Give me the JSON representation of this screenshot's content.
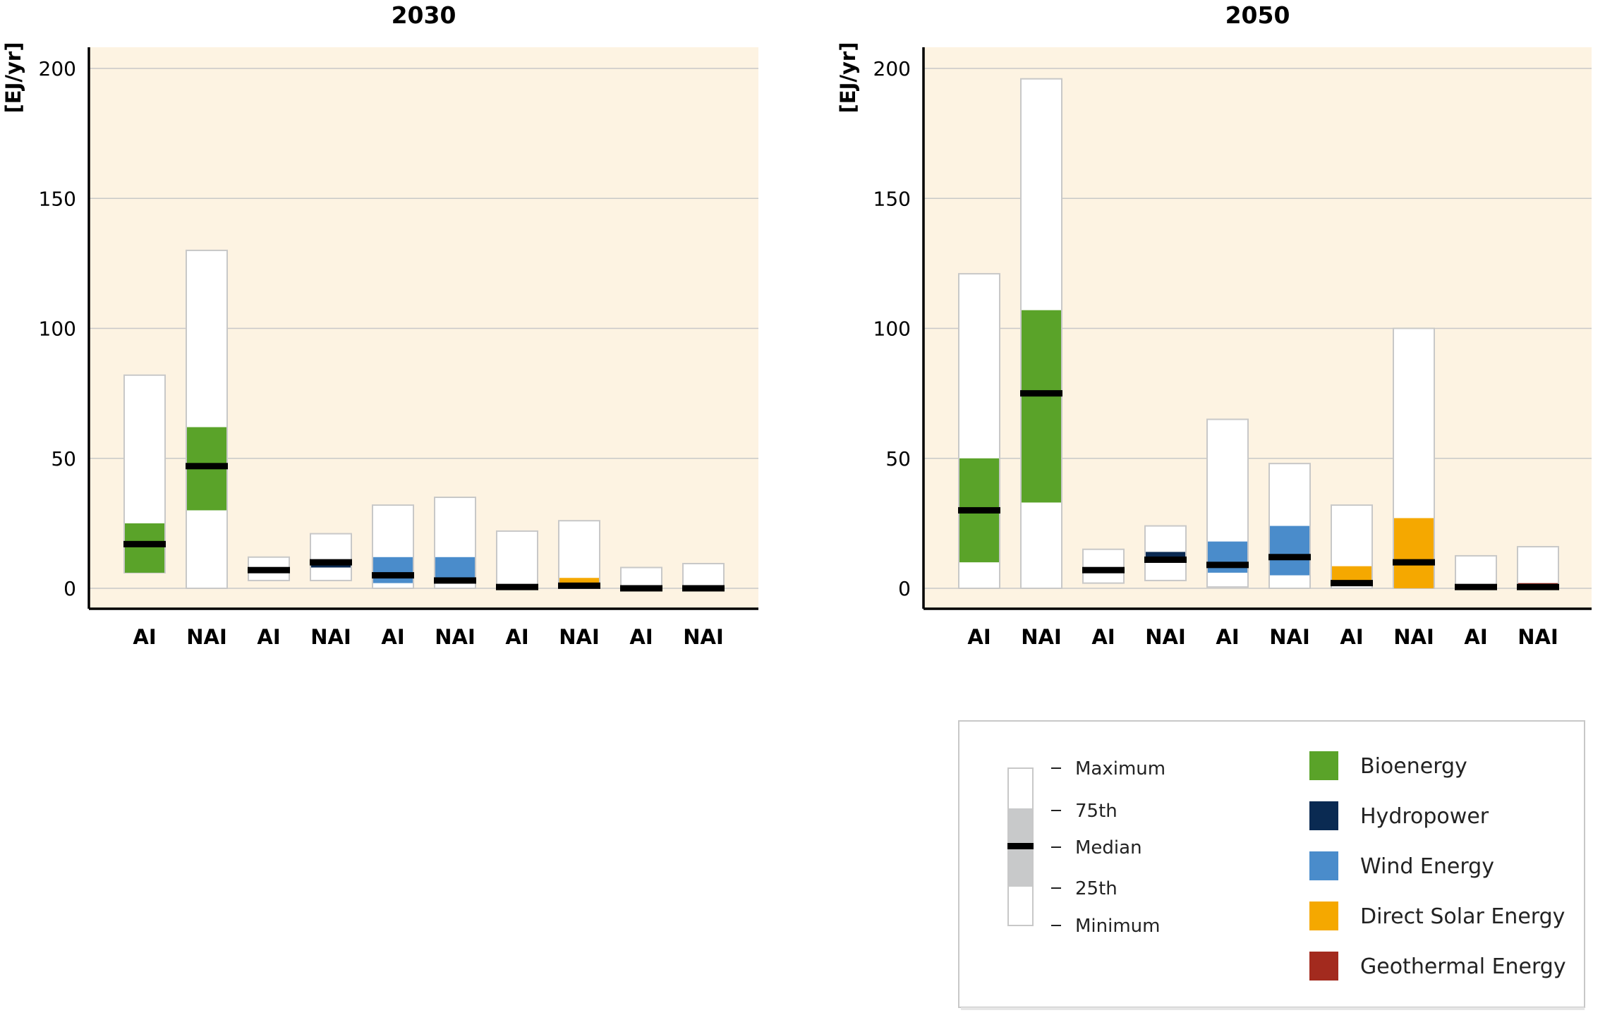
{
  "chart_data": [
    {
      "type": "boxplot",
      "title": "2030",
      "ylabel": "[EJ/yr]",
      "ylim": [
        0,
        208
      ],
      "yticks": [
        0,
        50,
        100,
        150,
        200
      ],
      "categories": [
        "AI",
        "NAI",
        "AI",
        "NAI",
        "AI",
        "NAI",
        "AI",
        "NAI",
        "AI",
        "NAI"
      ],
      "boxes": [
        {
          "series": "Bioenergy",
          "min": 6,
          "q25": 6,
          "median": 17,
          "q75": 25,
          "max": 82
        },
        {
          "series": "Bioenergy",
          "min": 0,
          "q25": 30,
          "median": 47,
          "q75": 62,
          "max": 130
        },
        {
          "series": "Hydropower",
          "min": 3,
          "q25": 6,
          "median": 7,
          "q75": 8,
          "max": 12
        },
        {
          "series": "Hydropower",
          "min": 3,
          "q25": 8,
          "median": 10,
          "q75": 11,
          "max": 21
        },
        {
          "series": "Wind Energy",
          "min": 0,
          "q25": 2,
          "median": 5,
          "q75": 12,
          "max": 32
        },
        {
          "series": "Wind Energy",
          "min": 0,
          "q25": 2,
          "median": 3,
          "q75": 12,
          "max": 35
        },
        {
          "series": "Direct Solar Energy",
          "min": 0,
          "q25": 0,
          "median": 0.5,
          "q75": 1.5,
          "max": 22
        },
        {
          "series": "Direct Solar Energy",
          "min": 0,
          "q25": 0,
          "median": 1,
          "q75": 4,
          "max": 26
        },
        {
          "series": "Geothermal Energy",
          "min": 0,
          "q25": 0,
          "median": 0,
          "q75": 0.3,
          "max": 8
        },
        {
          "series": "Geothermal Energy",
          "min": 0,
          "q25": 0,
          "median": 0,
          "q75": 0.3,
          "max": 9.5
        }
      ]
    },
    {
      "type": "boxplot",
      "title": "2050",
      "ylabel": "[EJ/yr]",
      "ylim": [
        0,
        208
      ],
      "yticks": [
        0,
        50,
        100,
        150,
        200
      ],
      "categories": [
        "AI",
        "NAI",
        "AI",
        "NAI",
        "AI",
        "NAI",
        "AI",
        "NAI",
        "AI",
        "NAI"
      ],
      "boxes": [
        {
          "series": "Bioenergy",
          "min": 0,
          "q25": 10,
          "median": 30,
          "q75": 50,
          "max": 121
        },
        {
          "series": "Bioenergy",
          "min": 0,
          "q25": 33,
          "median": 75,
          "q75": 107,
          "max": 196
        },
        {
          "series": "Hydropower",
          "min": 2,
          "q25": 6,
          "median": 7,
          "q75": 8,
          "max": 15
        },
        {
          "series": "Hydropower",
          "min": 3,
          "q25": 10,
          "median": 11,
          "q75": 14,
          "max": 24
        },
        {
          "series": "Wind Energy",
          "min": 0.5,
          "q25": 6,
          "median": 9,
          "q75": 18,
          "max": 65
        },
        {
          "series": "Wind Energy",
          "min": 0,
          "q25": 5,
          "median": 12,
          "q75": 24,
          "max": 48
        },
        {
          "series": "Direct Solar Energy",
          "min": 0,
          "q25": 1,
          "median": 2,
          "q75": 8.5,
          "max": 32
        },
        {
          "series": "Direct Solar Energy",
          "min": 0,
          "q25": 0,
          "median": 10,
          "q75": 27,
          "max": 100
        },
        {
          "series": "Geothermal Energy",
          "min": 0,
          "q25": 0,
          "median": 0.5,
          "q75": 1,
          "max": 12.5
        },
        {
          "series": "Geothermal Energy",
          "min": 0,
          "q25": 0,
          "median": 0.5,
          "q75": 2,
          "max": 16
        }
      ]
    }
  ],
  "legend": {
    "stat_labels": [
      "Maximum",
      "75th",
      "Median",
      "25th",
      "Minimum"
    ],
    "series": [
      {
        "name": "Bioenergy",
        "color": "#5aa329"
      },
      {
        "name": "Hydropower",
        "color": "#0a2a52"
      },
      {
        "name": "Wind Energy",
        "color": "#4a8ccb"
      },
      {
        "name": "Direct Solar Energy",
        "color": "#f5a800"
      },
      {
        "name": "Geothermal Energy",
        "color": "#a32a1e"
      }
    ]
  },
  "colors": {
    "plot_background": "#fdf3e2",
    "gridline": "#c8c8c8",
    "median_bar": "#000000",
    "box_outline": "#c8c8c8",
    "legend_sample_iqr": "#c8c9ca"
  }
}
